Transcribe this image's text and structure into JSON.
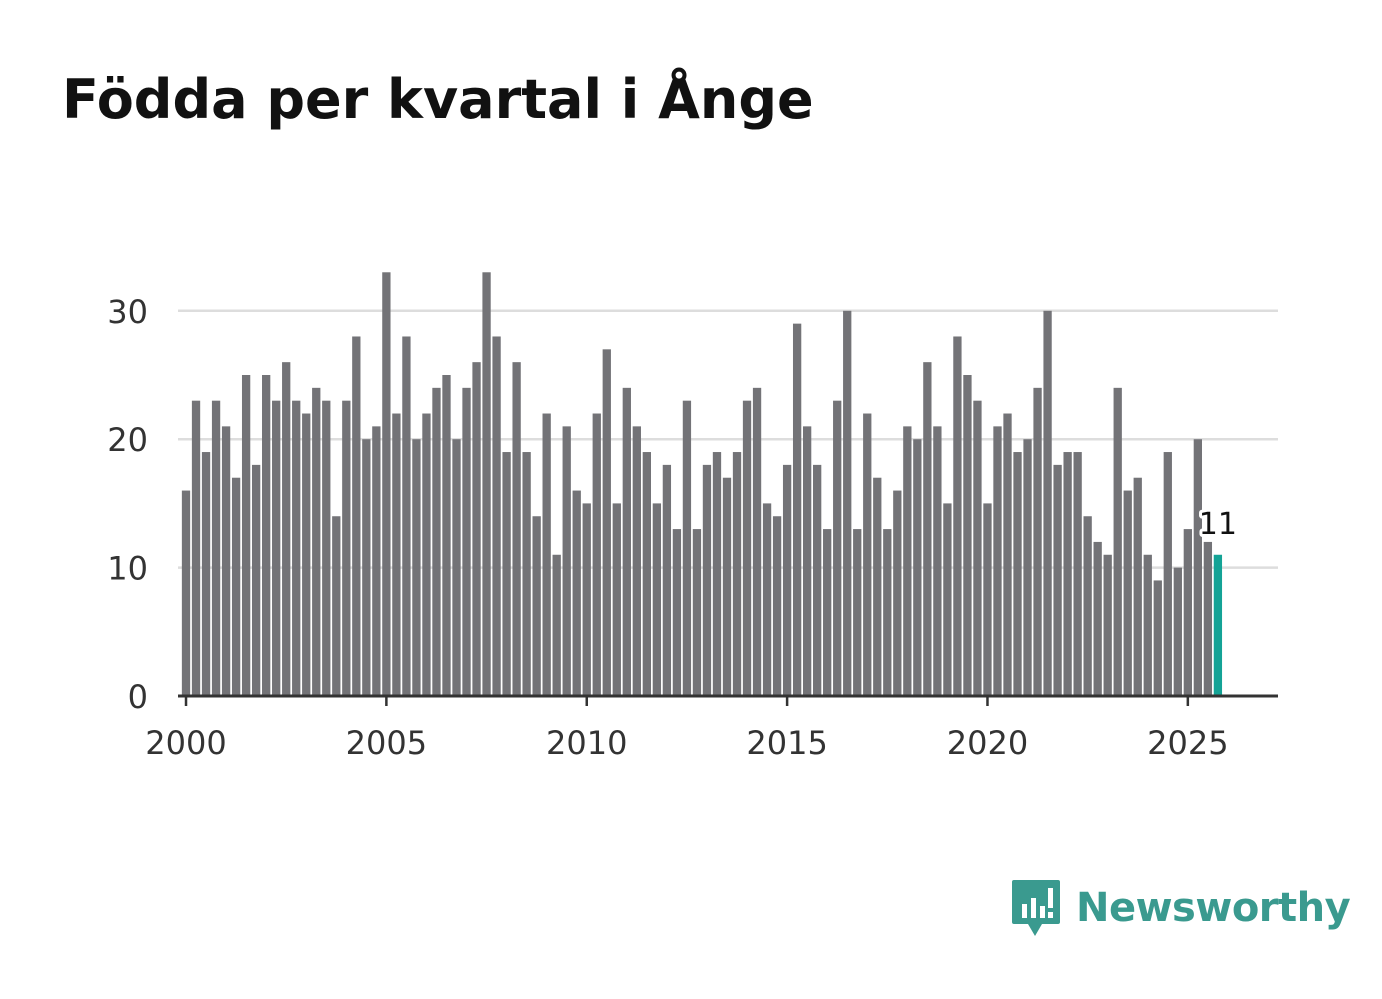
{
  "title": "Födda per kvartal i Ånge",
  "brand": {
    "name": "Newsworthy",
    "icon": "newsworthy-logo-icon",
    "color": "#3a9a8f"
  },
  "chart_data": {
    "type": "bar",
    "title": "Födda per kvartal i Ånge",
    "xlabel": "",
    "ylabel": "",
    "ylim": [
      0,
      33
    ],
    "xlim": [
      1999.8,
      2027.25
    ],
    "yticks": [
      0,
      10,
      20,
      30
    ],
    "ytick_labels": [
      "0",
      "10",
      "20",
      "30"
    ],
    "xticks": [
      2000,
      2005,
      2010,
      2015,
      2020,
      2025
    ],
    "xtick_labels": [
      "2000",
      "2005",
      "2010",
      "2015",
      "2020",
      "2025"
    ],
    "grid": true,
    "start_year": 2000,
    "period": "quarter",
    "bar_color": "#737377",
    "highlight_color": "#14a396",
    "highlight_label": "11",
    "values": [
      16,
      23,
      19,
      23,
      21,
      17,
      25,
      18,
      25,
      23,
      26,
      23,
      22,
      24,
      23,
      14,
      23,
      28,
      20,
      21,
      33,
      22,
      28,
      20,
      22,
      24,
      25,
      20,
      24,
      26,
      33,
      28,
      19,
      26,
      19,
      14,
      22,
      11,
      21,
      16,
      15,
      22,
      27,
      15,
      24,
      21,
      19,
      15,
      18,
      13,
      23,
      13,
      18,
      19,
      17,
      19,
      23,
      24,
      15,
      14,
      18,
      29,
      21,
      18,
      13,
      23,
      30,
      13,
      22,
      17,
      13,
      16,
      21,
      20,
      26,
      21,
      15,
      28,
      25,
      23,
      15,
      21,
      22,
      19,
      20,
      24,
      30,
      18,
      19,
      19,
      14,
      12,
      11,
      24,
      16,
      17,
      11,
      9,
      19,
      10,
      13,
      20,
      12,
      11
    ]
  }
}
